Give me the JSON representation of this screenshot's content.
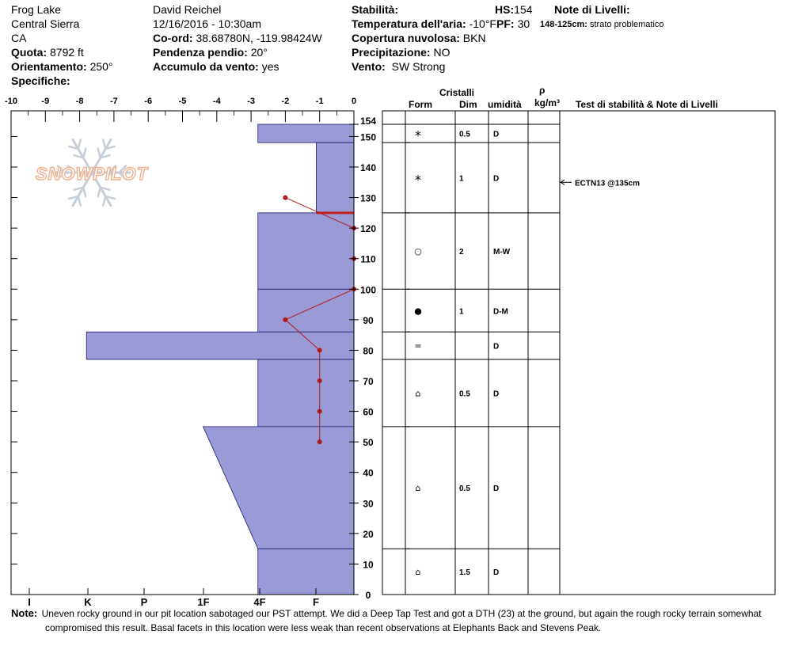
{
  "header": {
    "location": "Frog Lake",
    "range": "Central Sierra",
    "state": "CA",
    "elevation_label": "Quota:",
    "elevation_value": "8792 ft",
    "aspect_label": "Orientamento:",
    "aspect_value": "250°",
    "specifics_label": "Specifiche:",
    "observer": "David Reichel",
    "datetime": "12/16/2016 - 10:30am",
    "coord_label": "Co-ord:",
    "coord_value": "38.68780N, -119.98424W",
    "slope_label": "Pendenza pendio:",
    "slope_value": "20°",
    "wind_loading_label": "Accumulo da vento:",
    "wind_loading_value": "yes",
    "stability_label": "Stabilità:",
    "air_temp_label": "Temperatura dell'aria:",
    "air_temp_value": "-10°F",
    "cloud_label": "Copertura nuvolosa:",
    "cloud_value": "BKN",
    "precip_label": "Precipitazione:",
    "precip_value": "NO",
    "wind_label": "Vento:",
    "wind_value": "SW Strong",
    "hs_label": "HS:",
    "hs_value": "154",
    "pf_label": "PF:",
    "pf_value": "30",
    "layer_notes_label": "Note di Livelli:",
    "layer_note_range": "148-125cm:",
    "layer_note_text": "strato problematico"
  },
  "table_headers": {
    "crystals": "Cristalli",
    "form": "Form",
    "size": "Dim",
    "moisture": "umidità",
    "rho": "ρ",
    "density_unit": "kg/m³",
    "stability_notes": "Test di stabilità & Note di Livelli"
  },
  "logo_text": "SNOWPILOT",
  "note": {
    "label": "Note:",
    "line1": "Uneven rocky ground in our pit location sabotaged our PST attempt. We did a Deep Tap Test and got a DTH (23) at the ground, but again the rough rocky terrain somewhat",
    "line2": "compromised this result. Basal facets in this location were less weak than recent observations at Elephants Back and Stevens Peak."
  },
  "chart_data": {
    "type": "snow-profile",
    "temperature_axis": {
      "ticks": [
        -10,
        -9,
        -8,
        -7,
        -6,
        -5,
        -4,
        -3,
        -2,
        -1,
        0
      ],
      "range": [
        -10,
        0
      ]
    },
    "hardness_axis": {
      "labels": [
        "I",
        "K",
        "P",
        "1F",
        "4F",
        "F"
      ]
    },
    "depth_axis": {
      "range": [
        0,
        154
      ],
      "ticks": [
        0,
        10,
        20,
        30,
        40,
        50,
        60,
        70,
        80,
        90,
        100,
        110,
        120,
        130,
        140,
        150,
        154
      ]
    },
    "hardness_profile": [
      {
        "top": 154,
        "bottom": 148,
        "hardness": 2.8
      },
      {
        "top": 148,
        "bottom": 125,
        "hardness": 1.1
      },
      {
        "top": 125,
        "bottom": 100,
        "hardness": 2.8
      },
      {
        "top": 100,
        "bottom": 86,
        "hardness": 2.8
      },
      {
        "top": 86,
        "bottom": 77,
        "hardness": 7.8
      },
      {
        "top": 77,
        "bottom": 55,
        "hardness": 2.8
      },
      {
        "top": 55,
        "bottom": 15,
        "hardness_top": 4.4,
        "hardness_bottom": 2.8
      },
      {
        "top": 15,
        "bottom": 0,
        "hardness": 2.8
      }
    ],
    "problem_layer_depth": 125,
    "temperature_profile": [
      {
        "depth": 130,
        "temp": -2
      },
      {
        "depth": 120,
        "temp": 0
      },
      {
        "depth": 110,
        "temp": 0
      },
      {
        "depth": 100,
        "temp": 0
      },
      {
        "depth": 90,
        "temp": -2
      },
      {
        "depth": 80,
        "temp": -1
      },
      {
        "depth": 70,
        "temp": -1
      },
      {
        "depth": 60,
        "temp": -1
      },
      {
        "depth": 50,
        "temp": -1
      }
    ],
    "layers": [
      {
        "top": 154,
        "bottom": 148,
        "form": "*",
        "size": "0.5",
        "moisture": "D"
      },
      {
        "top": 148,
        "bottom": 125,
        "form": "*",
        "size": "1",
        "moisture": "D"
      },
      {
        "top": 125,
        "bottom": 100,
        "form": "○",
        "size": "2",
        "moisture": "M-W"
      },
      {
        "top": 100,
        "bottom": 86,
        "form": "●",
        "size": "1",
        "moisture": "D-M"
      },
      {
        "top": 86,
        "bottom": 77,
        "form": "=",
        "size": "",
        "moisture": "D"
      },
      {
        "top": 77,
        "bottom": 55,
        "form": "⌂",
        "size": "0.5",
        "moisture": "D"
      },
      {
        "top": 55,
        "bottom": 15,
        "form": "⌂",
        "size": "0.5",
        "moisture": "D"
      },
      {
        "top": 15,
        "bottom": 0,
        "form": "⌂",
        "size": "1.5",
        "moisture": "D"
      }
    ],
    "stability_tests": [
      {
        "depth": 135,
        "label": "ECTN13 @135cm"
      }
    ],
    "colors": {
      "hardness_fill": "#9a9ad6",
      "temperature": "#b01818",
      "problem_layer": "#c02020"
    }
  }
}
